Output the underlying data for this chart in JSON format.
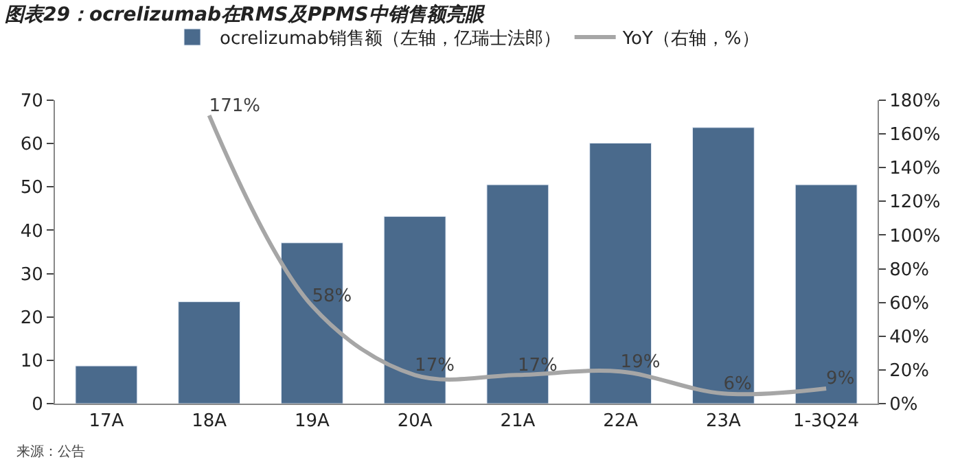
{
  "chart_data": {
    "type": "bar",
    "title": "图表29：ocrelizumab在RMS及PPMS中销售额亮眼",
    "categories": [
      "17A",
      "18A",
      "19A",
      "20A",
      "21A",
      "22A",
      "23A",
      "1-3Q24"
    ],
    "series": [
      {
        "name": "ocrelizumab销售额（左轴，亿瑞士法郎）",
        "color": "#4a6a8c",
        "values": [
          8.7,
          23.5,
          37.1,
          43.2,
          50.5,
          60.1,
          63.7,
          50.5
        ]
      },
      {
        "name": "YoY（右轴，%）",
        "color": "#a6a6a6",
        "type": "line",
        "axis": "y2",
        "values": [
          null,
          171,
          58,
          17,
          17,
          19,
          6,
          9
        ],
        "value_labels": [
          null,
          "171%",
          "58%",
          "17%",
          "17%",
          "19%",
          "6%",
          "9%"
        ]
      }
    ],
    "ylim": [
      0,
      70
    ],
    "yticks": [
      0,
      10,
      20,
      30,
      40,
      50,
      60,
      70
    ],
    "y2lim": [
      0,
      180
    ],
    "y2ticks": [
      {
        "value": 0,
        "label": "0%"
      },
      {
        "value": 20,
        "label": "20%"
      },
      {
        "value": 40,
        "label": "40%"
      },
      {
        "value": 60,
        "label": "60%"
      },
      {
        "value": 80,
        "label": "80%"
      },
      {
        "value": 100,
        "label": "100%"
      },
      {
        "value": 120,
        "label": "120%"
      },
      {
        "value": 140,
        "label": "140%"
      },
      {
        "value": 160,
        "label": "160%"
      },
      {
        "value": 180,
        "label": "180%"
      }
    ],
    "legend": "top",
    "marker": "none",
    "annotations": [
      "来源：公告"
    ]
  }
}
